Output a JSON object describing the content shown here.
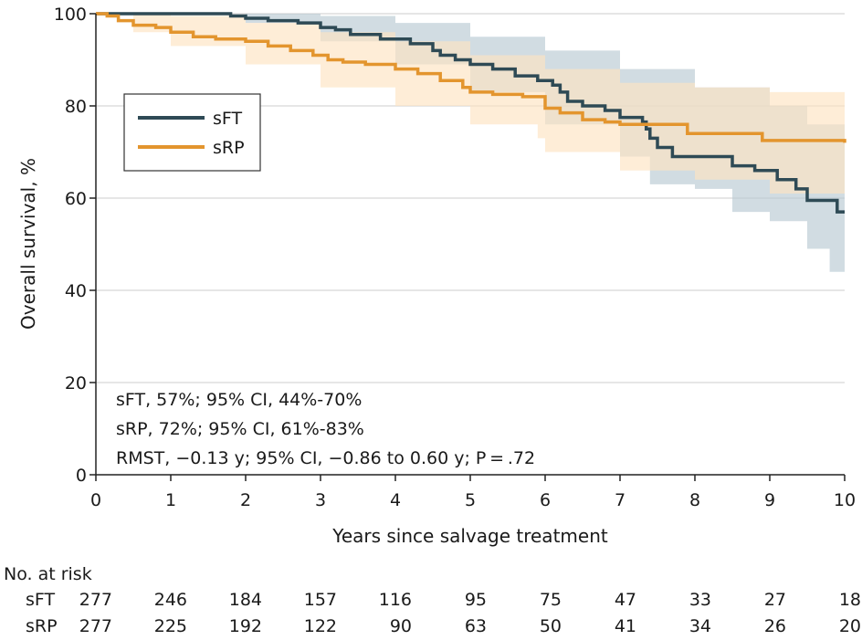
{
  "chart_data": {
    "type": "line",
    "subtype": "kaplan-meier",
    "title": "",
    "xlabel": "Years since salvage treatment",
    "ylabel": "Overall survival, %",
    "xlim": [
      0,
      10
    ],
    "ylim": [
      0,
      100
    ],
    "xticks": [
      "0",
      "1",
      "2",
      "3",
      "4",
      "5",
      "6",
      "7",
      "8",
      "9",
      "10"
    ],
    "yticks": [
      "0",
      "20",
      "40",
      "60",
      "80",
      "100"
    ],
    "grid": "horizontal",
    "legend": {
      "placement": "upper-left",
      "entries": [
        "sFT",
        "sRP"
      ]
    },
    "series": [
      {
        "name": "sFT",
        "color": "#2e4a55",
        "band_color": "#b9c9d3",
        "steps": [
          [
            0,
            100
          ],
          [
            1.8,
            99.5
          ],
          [
            2,
            99
          ],
          [
            2.3,
            98.5
          ],
          [
            2.7,
            98
          ],
          [
            3.0,
            97
          ],
          [
            3.2,
            96.5
          ],
          [
            3.4,
            95.5
          ],
          [
            3.8,
            94.5
          ],
          [
            4.2,
            93.5
          ],
          [
            4.5,
            92
          ],
          [
            4.6,
            91
          ],
          [
            4.8,
            90
          ],
          [
            5.0,
            89
          ],
          [
            5.3,
            88
          ],
          [
            5.6,
            86.5
          ],
          [
            5.9,
            85.5
          ],
          [
            6.1,
            84.5
          ],
          [
            6.2,
            83
          ],
          [
            6.3,
            81
          ],
          [
            6.5,
            80
          ],
          [
            6.8,
            79
          ],
          [
            7.0,
            77.5
          ],
          [
            7.3,
            76.5
          ],
          [
            7.35,
            75
          ],
          [
            7.4,
            73
          ],
          [
            7.5,
            71
          ],
          [
            7.7,
            69
          ],
          [
            8.5,
            67
          ],
          [
            8.8,
            66
          ],
          [
            9.1,
            64
          ],
          [
            9.35,
            62
          ],
          [
            9.5,
            59.5
          ],
          [
            9.9,
            57
          ],
          [
            10,
            57
          ]
        ],
        "lower": [
          [
            0,
            100
          ],
          [
            2,
            98
          ],
          [
            3,
            94
          ],
          [
            4,
            89
          ],
          [
            5,
            83
          ],
          [
            6,
            76
          ],
          [
            7,
            69
          ],
          [
            7.4,
            63
          ],
          [
            8,
            62
          ],
          [
            8.5,
            57
          ],
          [
            9,
            55
          ],
          [
            9.5,
            49
          ],
          [
            9.8,
            44
          ],
          [
            10,
            44
          ]
        ],
        "upper": [
          [
            0,
            100
          ],
          [
            2,
            100
          ],
          [
            3,
            99.5
          ],
          [
            4,
            98
          ],
          [
            5,
            95
          ],
          [
            6,
            92
          ],
          [
            7,
            88
          ],
          [
            8,
            84
          ],
          [
            9,
            80
          ],
          [
            9.5,
            76
          ],
          [
            10,
            70
          ]
        ]
      },
      {
        "name": "sRP",
        "color": "#e3952e",
        "band_color": "#fde3c1",
        "steps": [
          [
            0,
            100
          ],
          [
            0.15,
            99.5
          ],
          [
            0.3,
            98.5
          ],
          [
            0.5,
            97.5
          ],
          [
            0.8,
            97
          ],
          [
            1.0,
            96
          ],
          [
            1.3,
            95
          ],
          [
            1.6,
            94.5
          ],
          [
            2.0,
            94
          ],
          [
            2.3,
            93
          ],
          [
            2.6,
            92
          ],
          [
            2.9,
            91
          ],
          [
            3.1,
            90
          ],
          [
            3.3,
            89.5
          ],
          [
            3.6,
            89
          ],
          [
            4.0,
            88
          ],
          [
            4.3,
            87
          ],
          [
            4.6,
            85.5
          ],
          [
            4.9,
            84
          ],
          [
            5.0,
            83
          ],
          [
            5.3,
            82.5
          ],
          [
            5.7,
            82
          ],
          [
            6.0,
            79.5
          ],
          [
            6.2,
            78.5
          ],
          [
            6.5,
            77
          ],
          [
            6.8,
            76.5
          ],
          [
            7.0,
            76
          ],
          [
            7.5,
            76
          ],
          [
            7.9,
            74
          ],
          [
            8.9,
            72.5
          ],
          [
            10,
            72
          ]
        ],
        "lower": [
          [
            0,
            100
          ],
          [
            0.5,
            96
          ],
          [
            1,
            93
          ],
          [
            2,
            89
          ],
          [
            3,
            84
          ],
          [
            4,
            80
          ],
          [
            5,
            76
          ],
          [
            5.9,
            73
          ],
          [
            6,
            70
          ],
          [
            7,
            66
          ],
          [
            8,
            64
          ],
          [
            9,
            61
          ],
          [
            10,
            61
          ]
        ],
        "upper": [
          [
            0,
            100
          ],
          [
            1,
            99.5
          ],
          [
            2,
            98
          ],
          [
            3,
            96
          ],
          [
            4,
            94
          ],
          [
            5,
            91
          ],
          [
            6,
            88
          ],
          [
            7,
            85
          ],
          [
            8,
            84
          ],
          [
            9,
            83
          ],
          [
            10,
            83
          ]
        ]
      }
    ],
    "annotations": [
      "sFT, 57%; 95% CI, 44%-70%",
      "sRP, 72%; 95% CI, 61%-83%",
      "RMST, −0.13 y; 95% CI, −0.86 to 0.60 y; P = .72"
    ],
    "risk_table": {
      "title": "No. at risk",
      "times": [
        0,
        1,
        2,
        3,
        4,
        5,
        6,
        7,
        8,
        9,
        10
      ],
      "rows": [
        {
          "label": "sFT",
          "values": [
            277,
            246,
            184,
            157,
            116,
            95,
            75,
            47,
            33,
            27,
            18
          ]
        },
        {
          "label": "sRP",
          "values": [
            277,
            225,
            192,
            122,
            90,
            63,
            50,
            41,
            34,
            26,
            20
          ]
        }
      ]
    }
  }
}
